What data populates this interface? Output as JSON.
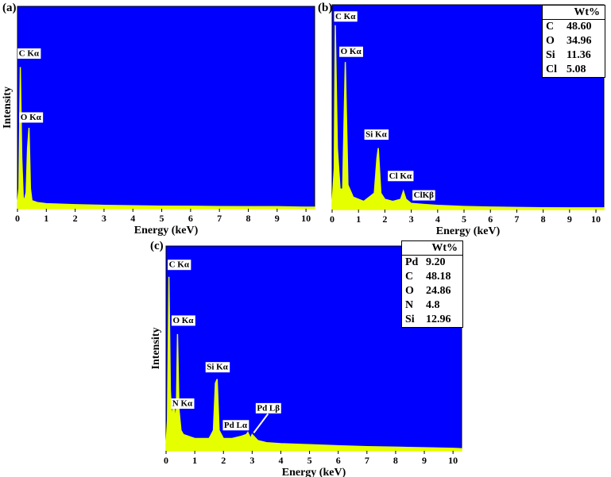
{
  "chart_data": [
    {
      "id": "a",
      "type": "line",
      "panel_label": "(a)",
      "xlabel": "Energy (keV)",
      "ylabel": "Intensity",
      "xlim": [
        0,
        10.3
      ],
      "ylim": [
        0,
        100
      ],
      "xticks": [
        0,
        1,
        2,
        3,
        4,
        5,
        6,
        7,
        8,
        9,
        10
      ],
      "background": "#0000ff",
      "line_color": "#e5ff00",
      "series": [
        {
          "x": [
            0,
            0.05,
            0.1,
            0.15,
            0.2,
            0.25,
            0.3,
            0.35,
            0.4,
            0.45,
            0.5,
            0.7,
            1,
            2,
            3,
            4,
            5,
            6,
            7,
            8,
            9,
            10,
            10.3
          ],
          "y": [
            3,
            10,
            70,
            25,
            5,
            5,
            8,
            30,
            40,
            10,
            4,
            3,
            2.5,
            2,
            1.7,
            1.5,
            1.3,
            1.2,
            1.1,
            1,
            1,
            0.8,
            0.8
          ]
        }
      ],
      "peaks": [
        {
          "label": "C Kα",
          "x": 0.1,
          "y": 70
        },
        {
          "label": "O Kα",
          "x": 0.38,
          "y": 40
        }
      ],
      "table": null
    },
    {
      "id": "b",
      "type": "line",
      "panel_label": "(b)",
      "xlabel": "Energy (keV)",
      "ylabel": "",
      "xlim": [
        0,
        10.3
      ],
      "ylim": [
        0,
        100
      ],
      "xticks": [
        0,
        1,
        2,
        3,
        4,
        5,
        6,
        7,
        8,
        9,
        10
      ],
      "background": "#0000ff",
      "line_color": "#e5ff00",
      "series": [
        {
          "x": [
            0,
            0.08,
            0.12,
            0.2,
            0.3,
            0.4,
            0.5,
            0.6,
            0.8,
            1.2,
            1.6,
            1.7,
            1.75,
            1.85,
            2.0,
            2.3,
            2.6,
            2.7,
            2.8,
            2.9,
            3.0,
            3.5,
            4,
            5,
            6,
            7,
            8,
            9,
            10,
            10.3
          ],
          "y": [
            3,
            20,
            90,
            30,
            10,
            10,
            72,
            12,
            6,
            4,
            8,
            25,
            30,
            8,
            5,
            4,
            5,
            9,
            5,
            4,
            3,
            2.5,
            2,
            1.5,
            1.2,
            1,
            0.9,
            0.8,
            0.8,
            0.8
          ]
        }
      ],
      "peaks": [
        {
          "label": "C Kα",
          "x": 0.12,
          "y": 90
        },
        {
          "label": "O Kα",
          "x": 0.5,
          "y": 72
        },
        {
          "label": "Si Kα",
          "x": 1.75,
          "y": 30
        },
        {
          "label": "Cl Kα",
          "x": 2.7,
          "y": 9
        },
        {
          "label": "ClKβ",
          "x": 2.85,
          "y": 5
        }
      ],
      "table": {
        "header": "Wt%",
        "rows": [
          {
            "element": "C",
            "value": "48.60"
          },
          {
            "element": "O",
            "value": "34.96"
          },
          {
            "element": "Si",
            "value": "11.36"
          },
          {
            "element": "Cl",
            "value": "5.08"
          }
        ]
      }
    },
    {
      "id": "c",
      "type": "line",
      "panel_label": "(c)",
      "xlabel": "Energy (keV)",
      "ylabel": "Intensity",
      "xlim": [
        0,
        10.3
      ],
      "ylim": [
        0,
        100
      ],
      "xticks": [
        0,
        1,
        2,
        3,
        4,
        5,
        6,
        7,
        8,
        9,
        10
      ],
      "background": "#0000ff",
      "line_color": "#e5ff00",
      "series": [
        {
          "x": [
            0,
            0.05,
            0.1,
            0.15,
            0.2,
            0.27,
            0.32,
            0.36,
            0.4,
            0.45,
            0.52,
            0.6,
            0.8,
            1.0,
            1.2,
            1.5,
            1.65,
            1.72,
            1.78,
            1.85,
            2.0,
            2.3,
            2.6,
            2.8,
            2.85,
            2.95,
            3.0,
            3.2,
            3.5,
            4,
            5,
            6,
            7,
            8,
            9,
            10,
            10.3
          ],
          "y": [
            3,
            15,
            85,
            30,
            15,
            25,
            15,
            20,
            57,
            20,
            10,
            8,
            7,
            6,
            6,
            6,
            10,
            33,
            35,
            10,
            6,
            6,
            7,
            8,
            9,
            6,
            8,
            5,
            4,
            3.5,
            3,
            2.5,
            2,
            1.8,
            1.5,
            1.2,
            1
          ]
        }
      ],
      "peaks": [
        {
          "label": "C Kα",
          "x": 0.1,
          "y": 85
        },
        {
          "label": "O Kα",
          "x": 0.4,
          "y": 57
        },
        {
          "label": "N Kα",
          "x": 0.27,
          "y": 25
        },
        {
          "label": "Si Kα",
          "x": 1.75,
          "y": 35
        },
        {
          "label": "Pd Lα",
          "x": 2.85,
          "y": 9
        },
        {
          "label": "Pd Lβ",
          "x": 3.0,
          "y": 8
        }
      ],
      "table": {
        "header": "Wt%",
        "rows": [
          {
            "element": "Pd",
            "value": "9.20"
          },
          {
            "element": "C",
            "value": "48.18"
          },
          {
            "element": "O",
            "value": "24.86"
          },
          {
            "element": "N",
            "value": "4.8"
          },
          {
            "element": "Si",
            "value": "12.96"
          }
        ]
      }
    }
  ]
}
